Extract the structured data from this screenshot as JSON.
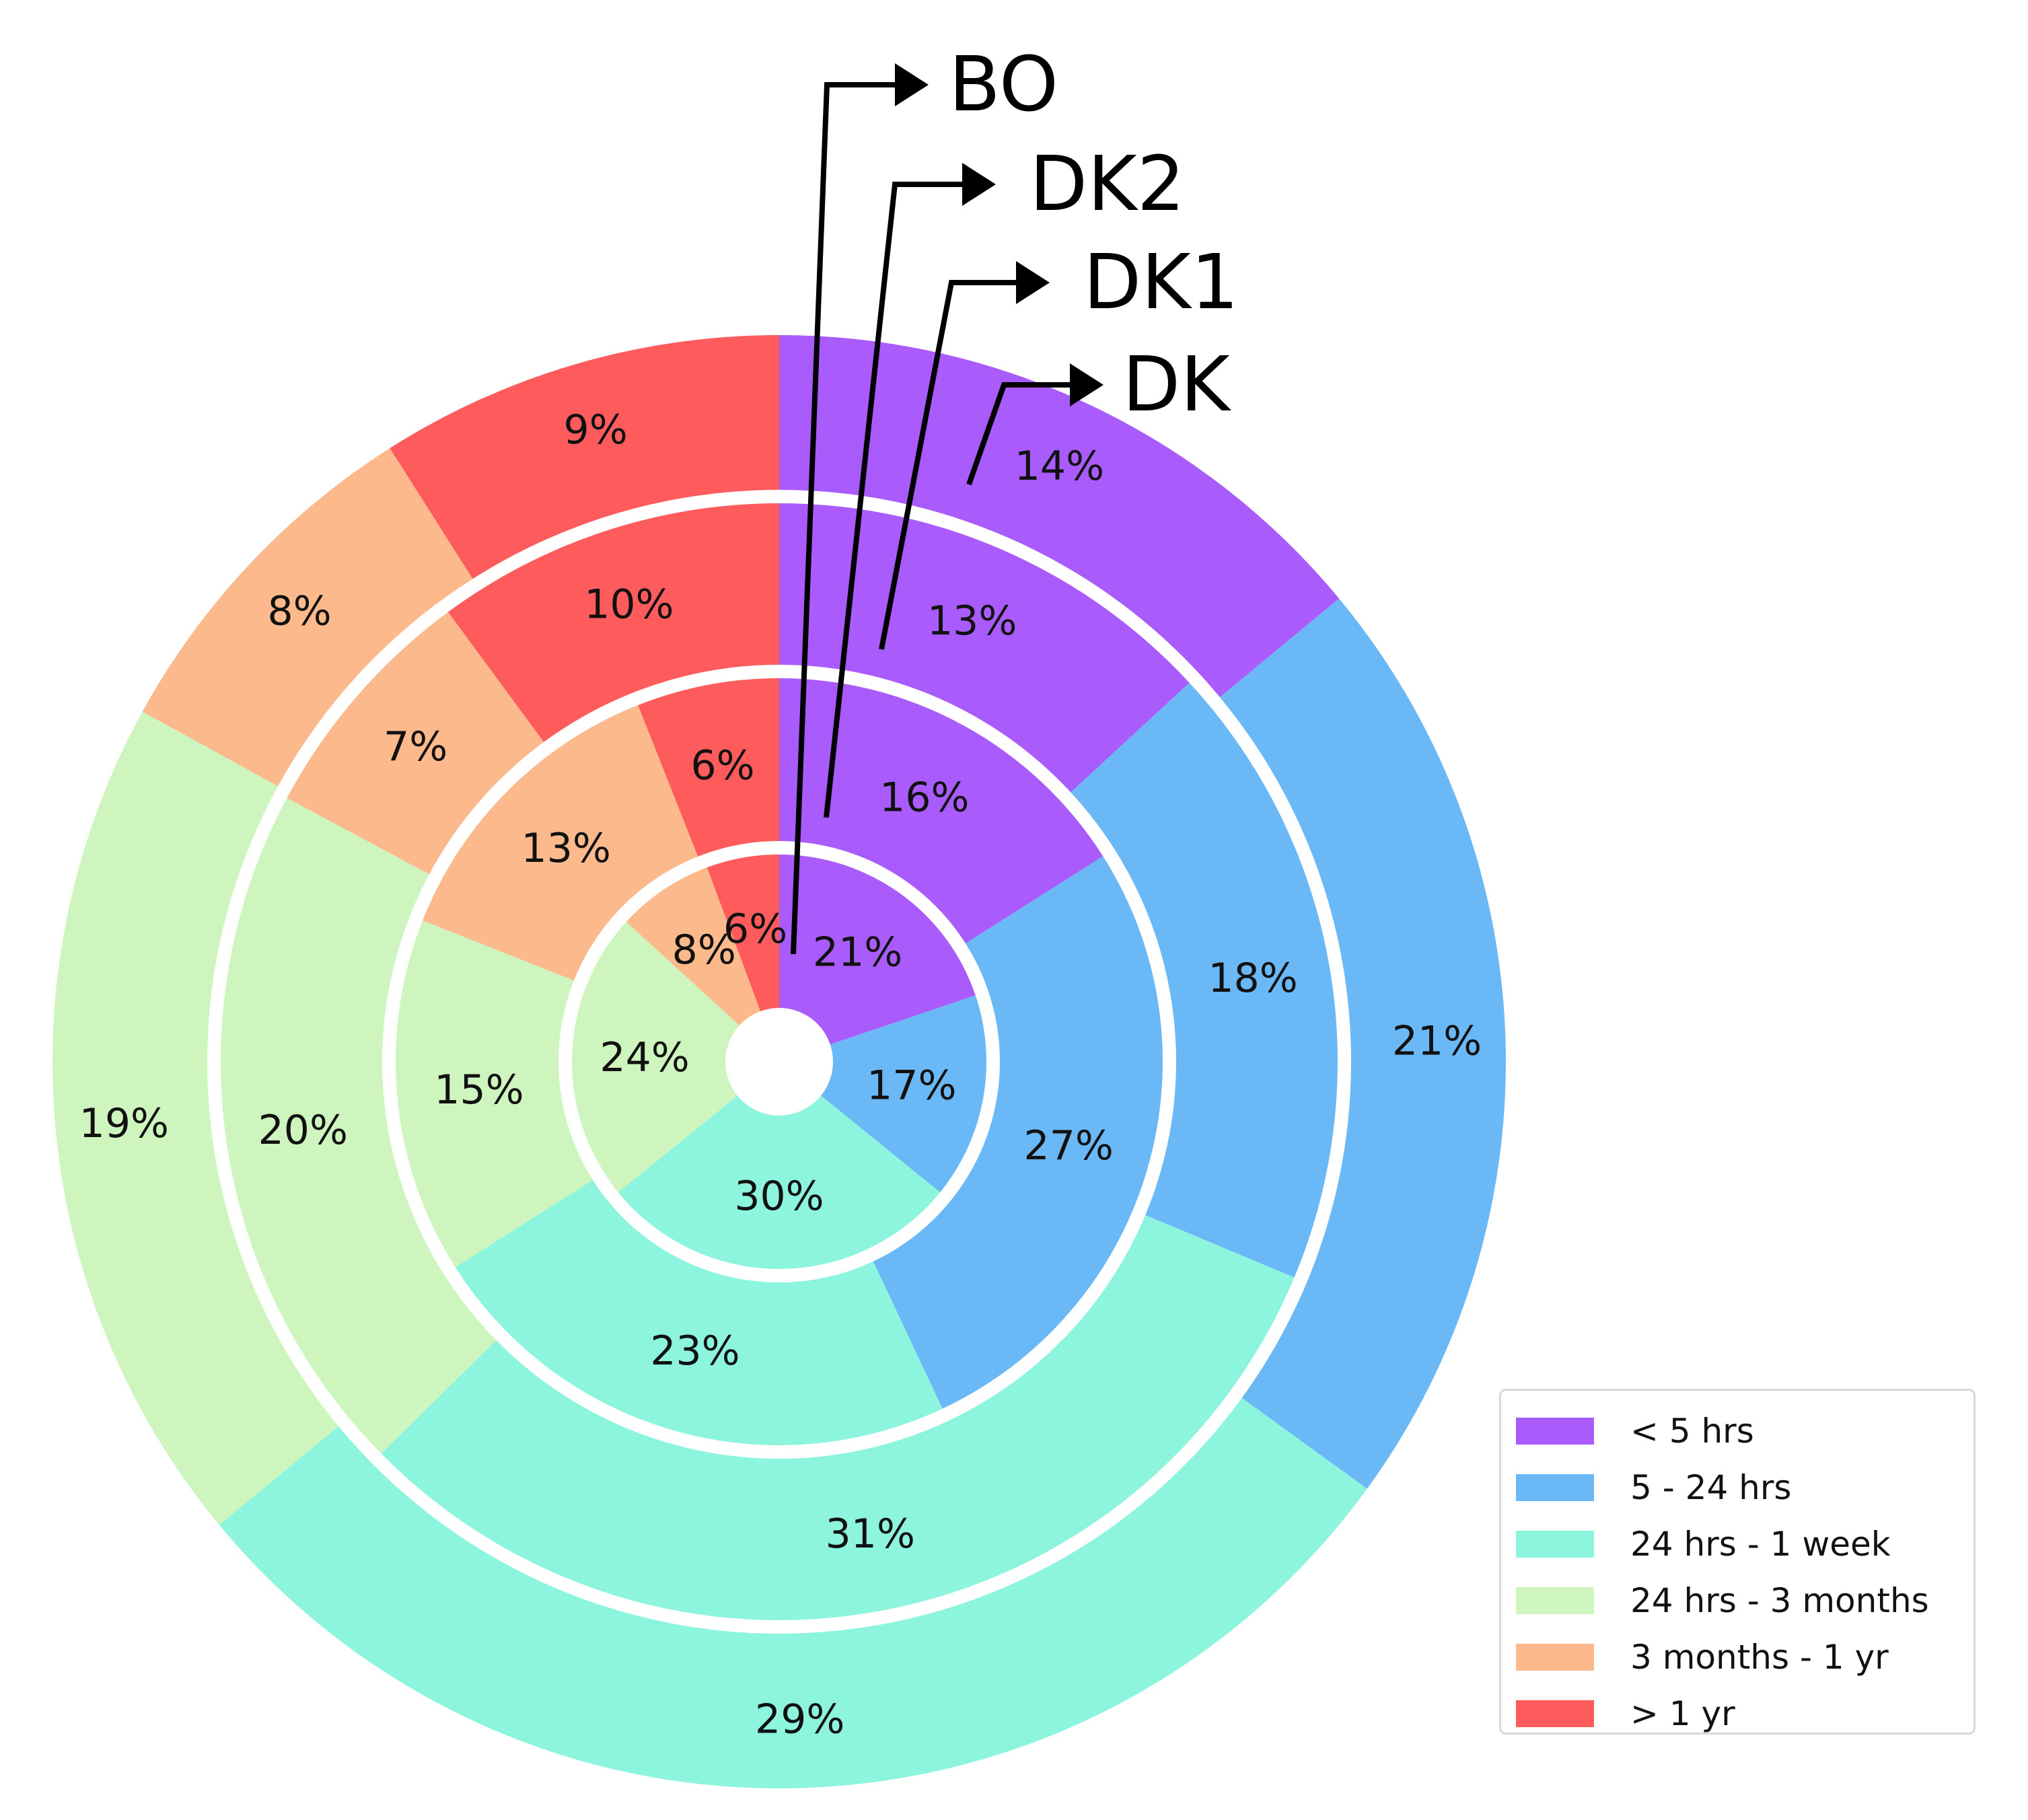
{
  "chart_data": {
    "type": "nested-donut",
    "categories": [
      "< 5 hrs",
      "5 - 24 hrs",
      "24 hrs - 1 week",
      "24 hrs - 3 months",
      "3 months - 1 yr",
      "> 1 yr"
    ],
    "colors": [
      "#a95cfb",
      "#6bb8f6",
      "#8df5de",
      "#cdf5bd",
      "#fcb98b",
      "#fe5c5c"
    ],
    "start_angle_deg": 90,
    "direction": "clockwise",
    "rings": [
      {
        "name": "BO",
        "order": "innermost",
        "values": [
          21,
          17,
          30,
          24,
          8,
          6
        ]
      },
      {
        "name": "DK2",
        "order": 2,
        "values": [
          16,
          27,
          23,
          15,
          13,
          6
        ]
      },
      {
        "name": "DK1",
        "order": 3,
        "values": [
          13,
          18,
          31,
          20,
          7,
          10
        ]
      },
      {
        "name": "DK",
        "order": "outermost",
        "values": [
          14,
          21,
          29,
          19,
          8,
          9
        ]
      }
    ],
    "legend": {
      "position": "lower-right",
      "entries": [
        "< 5 hrs",
        "5 - 24 hrs",
        "24 hrs - 1 week",
        "24 hrs - 3 months",
        "3 months - 1 yr",
        "> 1 yr"
      ]
    }
  }
}
